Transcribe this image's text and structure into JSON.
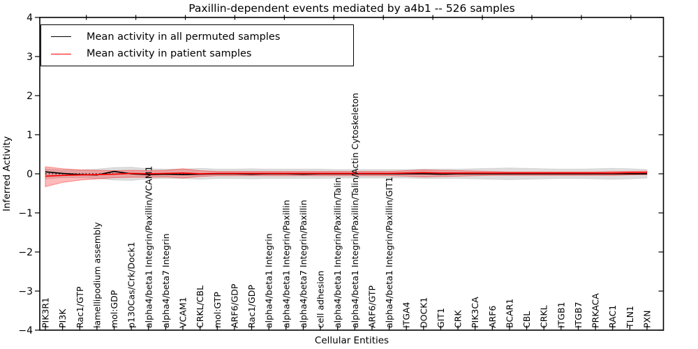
{
  "legend": {
    "entries": [
      {
        "label": "Mean activity in all permuted samples",
        "color": "#000000"
      },
      {
        "label": "Mean activity in patient samples",
        "color": "#ff0000"
      }
    ]
  },
  "chart_data": {
    "type": "line",
    "title": "Paxillin-dependent events mediated by a4b1 -- 526 samples",
    "xlabel": "Cellular Entities",
    "ylabel": "Inferred Activity",
    "ylim": [
      -4,
      4
    ],
    "ytick_values": [
      -4,
      -3,
      -2,
      -1,
      0,
      1,
      2,
      3,
      4
    ],
    "ytick_labels": [
      "−4",
      "−3",
      "−2",
      "−1",
      "0",
      "1",
      "2",
      "3",
      "4"
    ],
    "grid": false,
    "legend_position": "upper left",
    "categories": [
      "PIK3R1",
      "PI3K",
      "Rac1/GTP",
      "lamellipodium assembly",
      "mol:GDP",
      "p130Cas/Crk/Dock1",
      "alpha4/beta1 Integrin/Paxillin/VCAM1",
      "alpha4/beta7 Integrin",
      "VCAM1",
      "CRKL/CBL",
      "mol:GTP",
      "ARF6/GDP",
      "Rac1/GDP",
      "alpha4/beta1 Integrin",
      "alpha4/beta1 Integrin/Paxillin",
      "alpha4/beta7 Integrin/Paxillin",
      "cell adhesion",
      "alpha4/beta1 Integrin/Paxillin/Talin",
      "alpha4/beta1 Integrin/Paxillin/Talin/Actin Cytoskeleton",
      "ARF6/GTP",
      "alpha4/beta1 Integrin/Paxillin/GIT1",
      "ITGA4",
      "DOCK1",
      "GIT1",
      "CRK",
      "PIK3CA",
      "ARF6",
      "BCAR1",
      "CBL",
      "CRKL",
      "ITGB1",
      "ITGB7",
      "PRKACA",
      "RAC1",
      "TLN1",
      "PXN"
    ],
    "series": [
      {
        "name": "Mean activity in all permuted samples",
        "color": "#000000",
        "values": [
          0.05,
          0.01,
          -0.02,
          -0.03,
          0.06,
          0.0,
          -0.02,
          -0.01,
          -0.02,
          -0.01,
          0.0,
          0.0,
          -0.01,
          0.0,
          0.0,
          -0.01,
          0.0,
          0.0,
          0.0,
          0.0,
          0.0,
          0.0,
          0.0,
          -0.01,
          0.0,
          0.0,
          0.0,
          0.0,
          0.0,
          0.0,
          0.0,
          0.0,
          0.0,
          0.0,
          0.0,
          0.0
        ]
      },
      {
        "name": "Mean activity in patient samples",
        "color": "#ff0000",
        "values": [
          -0.06,
          -0.04,
          -0.03,
          -0.02,
          -0.01,
          0.01,
          0.0,
          0.01,
          0.02,
          0.0,
          0.01,
          0.01,
          0.01,
          0.01,
          0.01,
          0.01,
          0.01,
          0.01,
          0.01,
          0.01,
          0.01,
          0.02,
          0.03,
          0.02,
          0.02,
          0.02,
          0.02,
          0.02,
          0.02,
          0.02,
          0.02,
          0.02,
          0.02,
          0.02,
          0.03,
          0.03
        ]
      }
    ],
    "bands": [
      {
        "name": "permuted samples spread",
        "fill": "rgba(0,0,0,0.13)",
        "edge": "rgba(0,0,0,0.10)",
        "upper": [
          0.13,
          0.1,
          0.1,
          0.12,
          0.16,
          0.17,
          0.13,
          0.12,
          0.12,
          0.14,
          0.12,
          0.12,
          0.13,
          0.12,
          0.12,
          0.12,
          0.12,
          0.11,
          0.11,
          0.11,
          0.11,
          0.11,
          0.12,
          0.12,
          0.12,
          0.13,
          0.14,
          0.15,
          0.14,
          0.13,
          0.12,
          0.12,
          0.13,
          0.14,
          0.13,
          0.11
        ],
        "lower": [
          -0.13,
          -0.1,
          -0.1,
          -0.12,
          -0.16,
          -0.17,
          -0.13,
          -0.12,
          -0.12,
          -0.14,
          -0.12,
          -0.12,
          -0.13,
          -0.12,
          -0.12,
          -0.12,
          -0.12,
          -0.11,
          -0.11,
          -0.11,
          -0.11,
          -0.11,
          -0.12,
          -0.12,
          -0.12,
          -0.13,
          -0.14,
          -0.15,
          -0.14,
          -0.13,
          -0.12,
          -0.12,
          -0.13,
          -0.14,
          -0.13,
          -0.11
        ]
      },
      {
        "name": "patient samples spread",
        "fill": "rgba(255,0,0,0.27)",
        "edge": "rgba(255,0,0,0.40)",
        "upper": [
          0.18,
          0.13,
          0.1,
          0.09,
          0.08,
          0.09,
          0.08,
          0.09,
          0.13,
          0.08,
          0.06,
          0.06,
          0.06,
          0.06,
          0.06,
          0.06,
          0.06,
          0.06,
          0.06,
          0.06,
          0.06,
          0.08,
          0.1,
          0.09,
          0.08,
          0.07,
          0.06,
          0.05,
          0.05,
          0.05,
          0.05,
          0.05,
          0.05,
          0.06,
          0.06,
          0.07
        ],
        "lower": [
          -0.33,
          -0.22,
          -0.16,
          -0.13,
          -0.1,
          -0.09,
          -0.09,
          -0.08,
          -0.11,
          -0.07,
          -0.05,
          -0.05,
          -0.05,
          -0.05,
          -0.05,
          -0.05,
          -0.05,
          -0.05,
          -0.05,
          -0.05,
          -0.05,
          -0.06,
          -0.08,
          -0.07,
          -0.06,
          -0.05,
          -0.04,
          -0.04,
          -0.04,
          -0.04,
          -0.04,
          -0.04,
          -0.04,
          -0.04,
          -0.03,
          -0.02
        ]
      }
    ],
    "reference_line": {
      "y": 0,
      "style": "dotted",
      "color": "#000000"
    }
  }
}
